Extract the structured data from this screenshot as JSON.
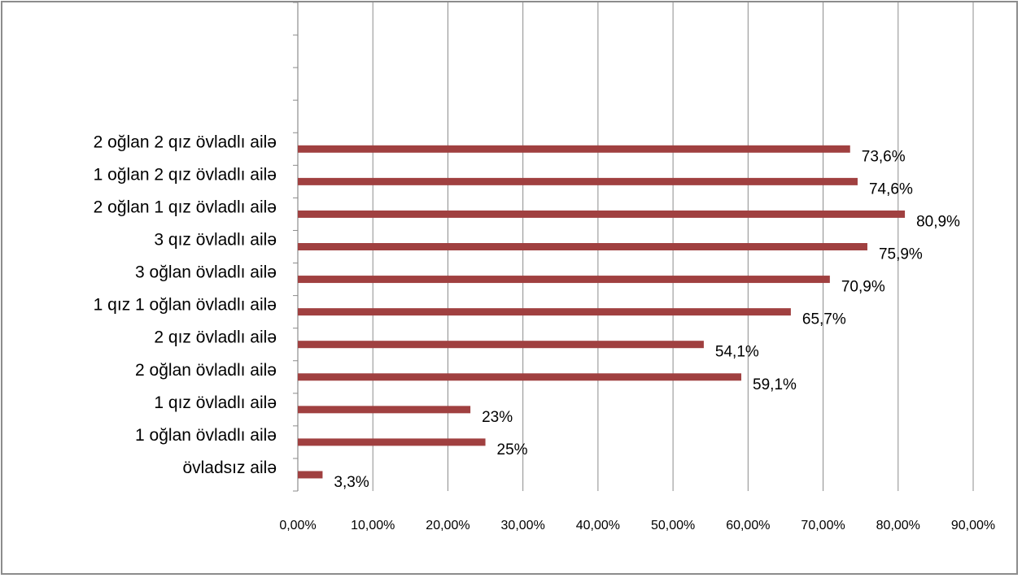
{
  "chart_data": {
    "type": "bar",
    "orientation": "horizontal",
    "categories": [
      "övladsız ailə",
      "1 oğlan övladlı ailə",
      "1 qız övladlı ailə",
      "2 oğlan övladlı ailə",
      "2 qız övladlı ailə",
      "1 qız 1 oğlan övladlı ailə",
      "3 oğlan övladlı ailə",
      "3 qız övladlı ailə",
      "2 oğlan 1 qız övladlı ailə",
      "1 oğlan 2 qız övladlı ailə",
      "2 oğlan 2 qız övladlı ailə"
    ],
    "values": [
      3.3,
      25,
      23,
      59.1,
      54.1,
      65.7,
      70.9,
      75.9,
      80.9,
      74.6,
      73.6
    ],
    "data_labels": [
      "3,3%",
      "25%",
      "23%",
      "59,1%",
      "54,1%",
      "65,7%",
      "70,9%",
      "75,9%",
      "80,9%",
      "74,6%",
      "73,6%"
    ],
    "xlim": [
      0,
      90
    ],
    "x_ticks": [
      "0,00%",
      "10,00%",
      "20,00%",
      "30,00%",
      "40,00%",
      "50,00%",
      "60,00%",
      "70,00%",
      "80,00%",
      "90,00%"
    ],
    "empty_category_slots_above": 4,
    "grid": true,
    "legend": "none",
    "bar_color": "#a04040",
    "grid_color": "#8c8c8c"
  }
}
